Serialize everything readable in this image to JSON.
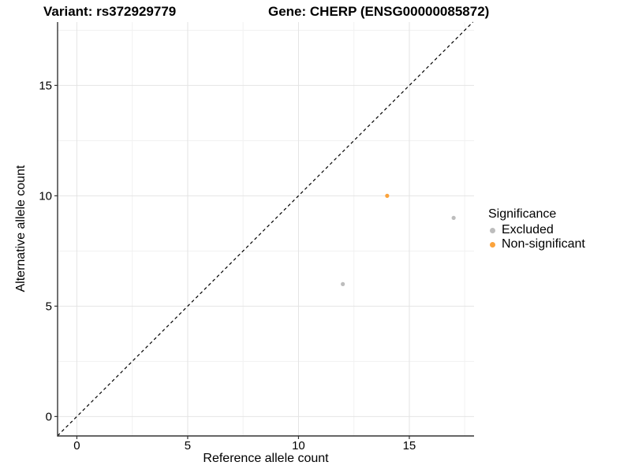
{
  "chart_data": {
    "type": "scatter",
    "title_left": "Variant: rs372929779",
    "title_right": "Gene: CHERP (ENSG00000085872)",
    "xlabel": "Reference allele count",
    "ylabel": "Alternative allele count",
    "xlim": [
      -0.87,
      17.92
    ],
    "ylim": [
      -0.88,
      17.87
    ],
    "x_ticks": [
      0,
      5,
      10,
      15
    ],
    "y_ticks": [
      0,
      5,
      10,
      15
    ],
    "x_tick_labels": [
      "0",
      "5",
      "10",
      "15"
    ],
    "y_tick_labels": [
      "0",
      "5",
      "10",
      "15"
    ],
    "x_minor_ticks": [
      2.5,
      7.5,
      12.5,
      17.5
    ],
    "y_minor_ticks": [
      2.5,
      7.5,
      12.5,
      17.5
    ],
    "grid": true,
    "legend": {
      "title": "Significance",
      "position": "right"
    },
    "reference_line": {
      "kind": "identity y=x",
      "style": "dashed",
      "color": "#000000"
    },
    "series": [
      {
        "name": "Excluded",
        "color": "#BDBDBD",
        "points": [
          {
            "x": 12,
            "y": 6
          },
          {
            "x": 17,
            "y": 9
          }
        ]
      },
      {
        "name": "Non-significant",
        "color": "#FBA33C",
        "points": [
          {
            "x": 14,
            "y": 10
          }
        ]
      }
    ],
    "colors": {
      "background": "#FFFFFF",
      "grid_major": "#E4E4E4",
      "grid_minor": "#F1F1F1",
      "axis": "#333333",
      "text": "#000000"
    }
  }
}
